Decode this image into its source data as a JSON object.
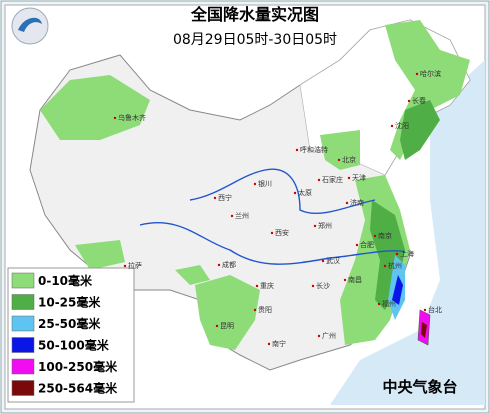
{
  "header": {
    "title": "全国降水量实况图",
    "subtitle": "08月29日05时-30日05时"
  },
  "legend": [
    {
      "label": "0-10毫米",
      "color": "#8ddc78"
    },
    {
      "label": "10-25毫米",
      "color": "#4fae46"
    },
    {
      "label": "25-50毫米",
      "color": "#5ec4f2"
    },
    {
      "label": "50-100毫米",
      "color": "#0a16e6"
    },
    {
      "label": "100-250毫米",
      "color": "#f20cf2"
    },
    {
      "label": "250-564毫米",
      "color": "#7a0a0a"
    }
  ],
  "source": "中央气象台",
  "cities": [
    "乌鲁木齐",
    "哈尔滨",
    "长春",
    "沈阳",
    "呼和浩特",
    "北京",
    "天津",
    "石家庄",
    "太原",
    "济南",
    "银川",
    "西宁",
    "兰州",
    "郑州",
    "西安",
    "合肥",
    "南京",
    "上海",
    "武汉",
    "杭州",
    "成都",
    "重庆",
    "长沙",
    "南昌",
    "福州",
    "贵阳",
    "昆明",
    "南宁",
    "广州",
    "台北",
    "拉萨"
  ]
}
